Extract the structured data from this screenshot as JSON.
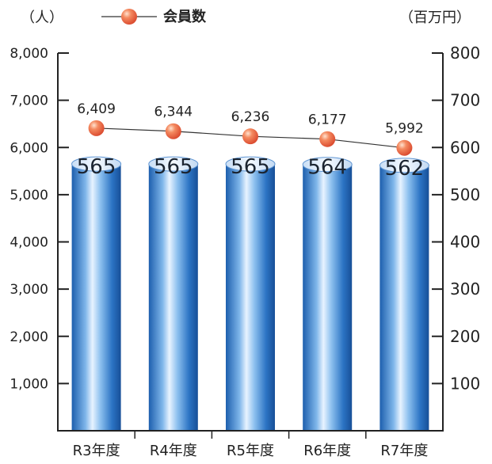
{
  "chart_data": {
    "type": "bar",
    "categories": [
      "R3年度",
      "R4年度",
      "R5年度",
      "R6年度",
      "R7年度"
    ],
    "left_axis": {
      "unit": "（人）",
      "ylim": [
        0,
        8000
      ],
      "ticks": [
        1000,
        2000,
        3000,
        4000,
        5000,
        6000,
        7000,
        8000
      ],
      "tick_labels": [
        "1,000",
        "2,000",
        "3,000",
        "4,000",
        "5,000",
        "6,000",
        "7,000",
        "8,000"
      ]
    },
    "right_axis": {
      "unit": "（百万円）",
      "ylim": [
        0,
        800
      ],
      "ticks": [
        100,
        200,
        300,
        400,
        500,
        600,
        700,
        800
      ],
      "tick_labels": [
        "100",
        "200",
        "300",
        "400",
        "500",
        "600",
        "700",
        "800"
      ]
    },
    "series": [
      {
        "type": "bar",
        "axis": "right",
        "values": [
          565,
          565,
          565,
          564,
          562
        ],
        "value_labels": [
          "565",
          "565",
          "565",
          "564",
          "562"
        ],
        "color": "#2f78c8"
      },
      {
        "name": "会員数",
        "type": "line",
        "axis": "left",
        "values": [
          6409,
          6344,
          6236,
          6177,
          5992
        ],
        "value_labels": [
          "6,409",
          "6,344",
          "6,236",
          "6,177",
          "5,992"
        ],
        "color": "#e8553a"
      }
    ],
    "legend": {
      "placement": "top-center",
      "label": "会員数"
    },
    "grid": false
  }
}
